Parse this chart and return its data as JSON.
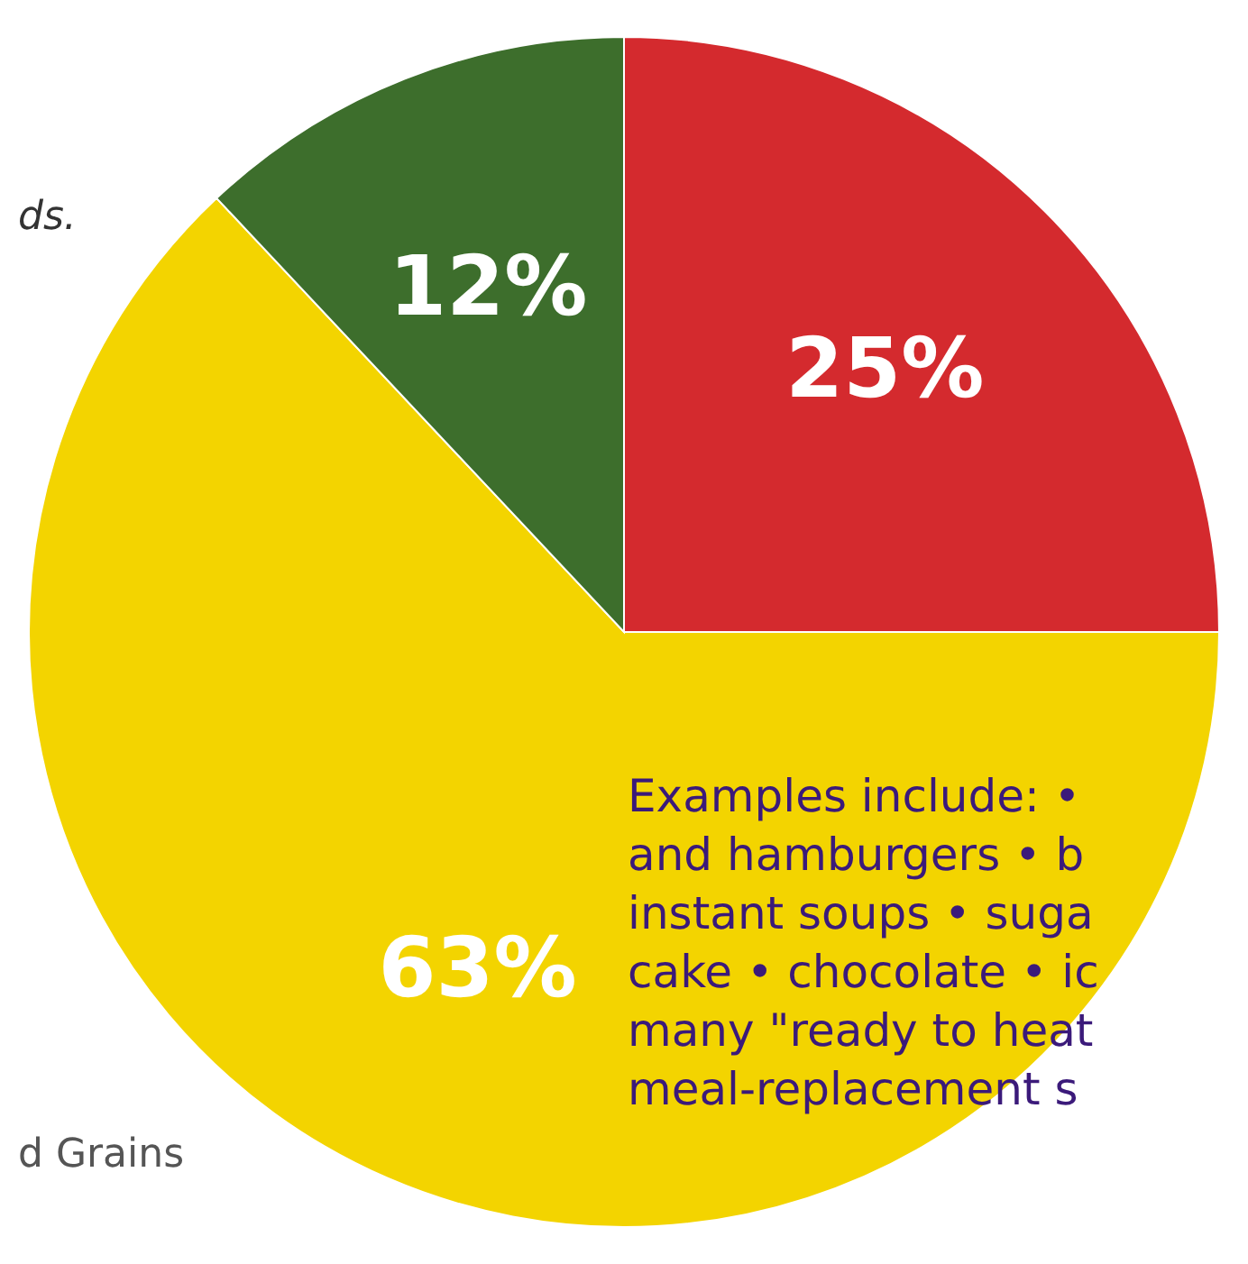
{
  "chart_data": {
    "type": "pie",
    "categories": [
      null,
      null,
      null
    ],
    "values": [
      25,
      63,
      12
    ],
    "colors": [
      "#d42a2e",
      "#f3d400",
      "#3d6e2c"
    ],
    "value_labels": [
      "25%",
      "63%",
      "12%"
    ],
    "annotations": [
      "ds.",
      "d Grains",
      "Examples include: • \nand hamburgers • b\ninstant soups • suga\ncake • chocolate • ic\nmany \"ready to heat\nmeal-replacement s"
    ]
  }
}
